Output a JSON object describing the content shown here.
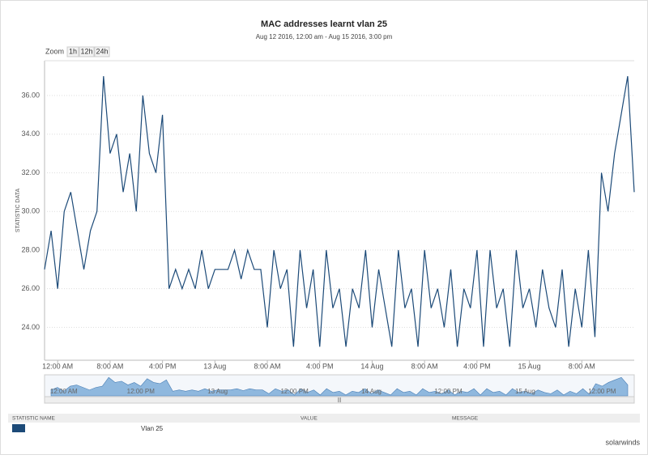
{
  "chart_data": {
    "type": "line",
    "title": "MAC addresses learnt vlan 25",
    "subtitle": "Aug 12 2016, 12:00 am - Aug 15 2016, 3:00 pm",
    "zoom_label": "Zoom",
    "zoom_buttons": [
      "1h",
      "12h",
      "24h"
    ],
    "y_label": "STATISTIC DATA",
    "categories": [
      null,
      null,
      "12:00 AM",
      null,
      null,
      null,
      null,
      null,
      null,
      null,
      "8:00 AM",
      null,
      null,
      null,
      null,
      null,
      null,
      null,
      "4:00 PM",
      null,
      null,
      null,
      null,
      null,
      null,
      null,
      "13 Aug",
      null,
      null,
      null,
      null,
      null,
      null,
      null,
      "8:00 AM",
      null,
      null,
      null,
      null,
      null,
      null,
      null,
      "4:00 PM",
      null,
      null,
      null,
      null,
      null,
      null,
      null,
      "14 Aug",
      null,
      null,
      null,
      null,
      null,
      null,
      null,
      "8:00 AM",
      null,
      null,
      null,
      null,
      null,
      null,
      null,
      "4:00 PM",
      null,
      null,
      null,
      null,
      null,
      null,
      null,
      "15 Aug",
      null,
      null,
      null,
      null,
      null,
      null,
      null,
      "8:00 AM",
      null,
      null,
      null,
      null,
      null,
      null,
      null,
      null
    ],
    "series": [
      {
        "name": "Vlan 25",
        "color": "#1c4a78",
        "values": [
          27,
          29,
          26,
          30,
          31,
          29,
          27,
          29,
          30,
          37,
          33,
          34,
          31,
          33,
          30,
          36,
          33,
          32,
          35,
          26,
          27,
          26,
          27,
          26,
          28,
          26,
          27,
          27,
          27,
          28,
          26.5,
          28,
          27,
          27,
          24,
          28,
          26,
          27,
          23,
          28,
          25,
          27,
          23,
          28,
          25,
          26,
          23,
          26,
          25,
          28,
          24,
          27,
          25,
          23,
          28,
          25,
          26,
          23,
          28,
          25,
          26,
          24,
          27,
          23,
          26,
          25,
          28,
          23,
          28,
          25,
          26,
          23,
          28,
          25,
          26,
          24,
          27,
          25,
          24,
          27,
          23,
          26,
          24,
          28,
          23.5,
          32,
          30,
          33,
          35,
          37,
          31
        ]
      }
    ],
    "ylim": [
      22.3,
      37.8
    ],
    "yticks": [
      {
        "value": 24,
        "label": "24.00"
      },
      {
        "value": 26,
        "label": "26.00"
      },
      {
        "value": 28,
        "label": "28.00"
      },
      {
        "value": 30,
        "label": "30.00"
      },
      {
        "value": 32,
        "label": "32.00"
      },
      {
        "value": 34,
        "label": "34.00"
      },
      {
        "value": 36,
        "label": "36.00"
      }
    ],
    "grid": true,
    "navigator_labels": [
      "12:00 AM",
      "12:00 PM",
      "13 Aug",
      "12:00 PM",
      "14 Aug",
      "12:00 PM",
      "15 Aug",
      "12:00 PM"
    ],
    "table_headers": [
      "STATISTIC NAME",
      "VALUE",
      "MESSAGE"
    ],
    "brand": "solarwinds"
  }
}
